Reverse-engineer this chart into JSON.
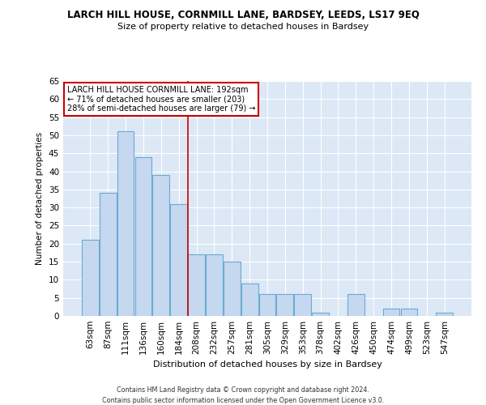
{
  "title": "LARCH HILL HOUSE, CORNMILL LANE, BARDSEY, LEEDS, LS17 9EQ",
  "subtitle": "Size of property relative to detached houses in Bardsey",
  "xlabel": "Distribution of detached houses by size in Bardsey",
  "ylabel": "Number of detached properties",
  "categories": [
    "63sqm",
    "87sqm",
    "111sqm",
    "136sqm",
    "160sqm",
    "184sqm",
    "208sqm",
    "232sqm",
    "257sqm",
    "281sqm",
    "305sqm",
    "329sqm",
    "353sqm",
    "378sqm",
    "402sqm",
    "426sqm",
    "450sqm",
    "474sqm",
    "499sqm",
    "523sqm",
    "547sqm"
  ],
  "values": [
    21,
    34,
    51,
    44,
    39,
    31,
    17,
    17,
    15,
    9,
    6,
    6,
    6,
    1,
    0,
    6,
    0,
    2,
    2,
    0,
    1
  ],
  "bar_color": "#c5d8ef",
  "bar_edgecolor": "#6aaad4",
  "vline_x": 5.5,
  "vline_color": "#cc0000",
  "bg_color": "#dce8f5",
  "fig_bg": "#ffffff",
  "grid_color": "#ffffff",
  "legend_text_line1": "LARCH HILL HOUSE CORNMILL LANE: 192sqm",
  "legend_text_line2": "← 71% of detached houses are smaller (203)",
  "legend_text_line3": "28% of semi-detached houses are larger (79) →",
  "footer_line1": "Contains HM Land Registry data © Crown copyright and database right 2024.",
  "footer_line2": "Contains public sector information licensed under the Open Government Licence v3.0.",
  "ylim": [
    0,
    65
  ],
  "yticks": [
    0,
    5,
    10,
    15,
    20,
    25,
    30,
    35,
    40,
    45,
    50,
    55,
    60,
    65
  ]
}
